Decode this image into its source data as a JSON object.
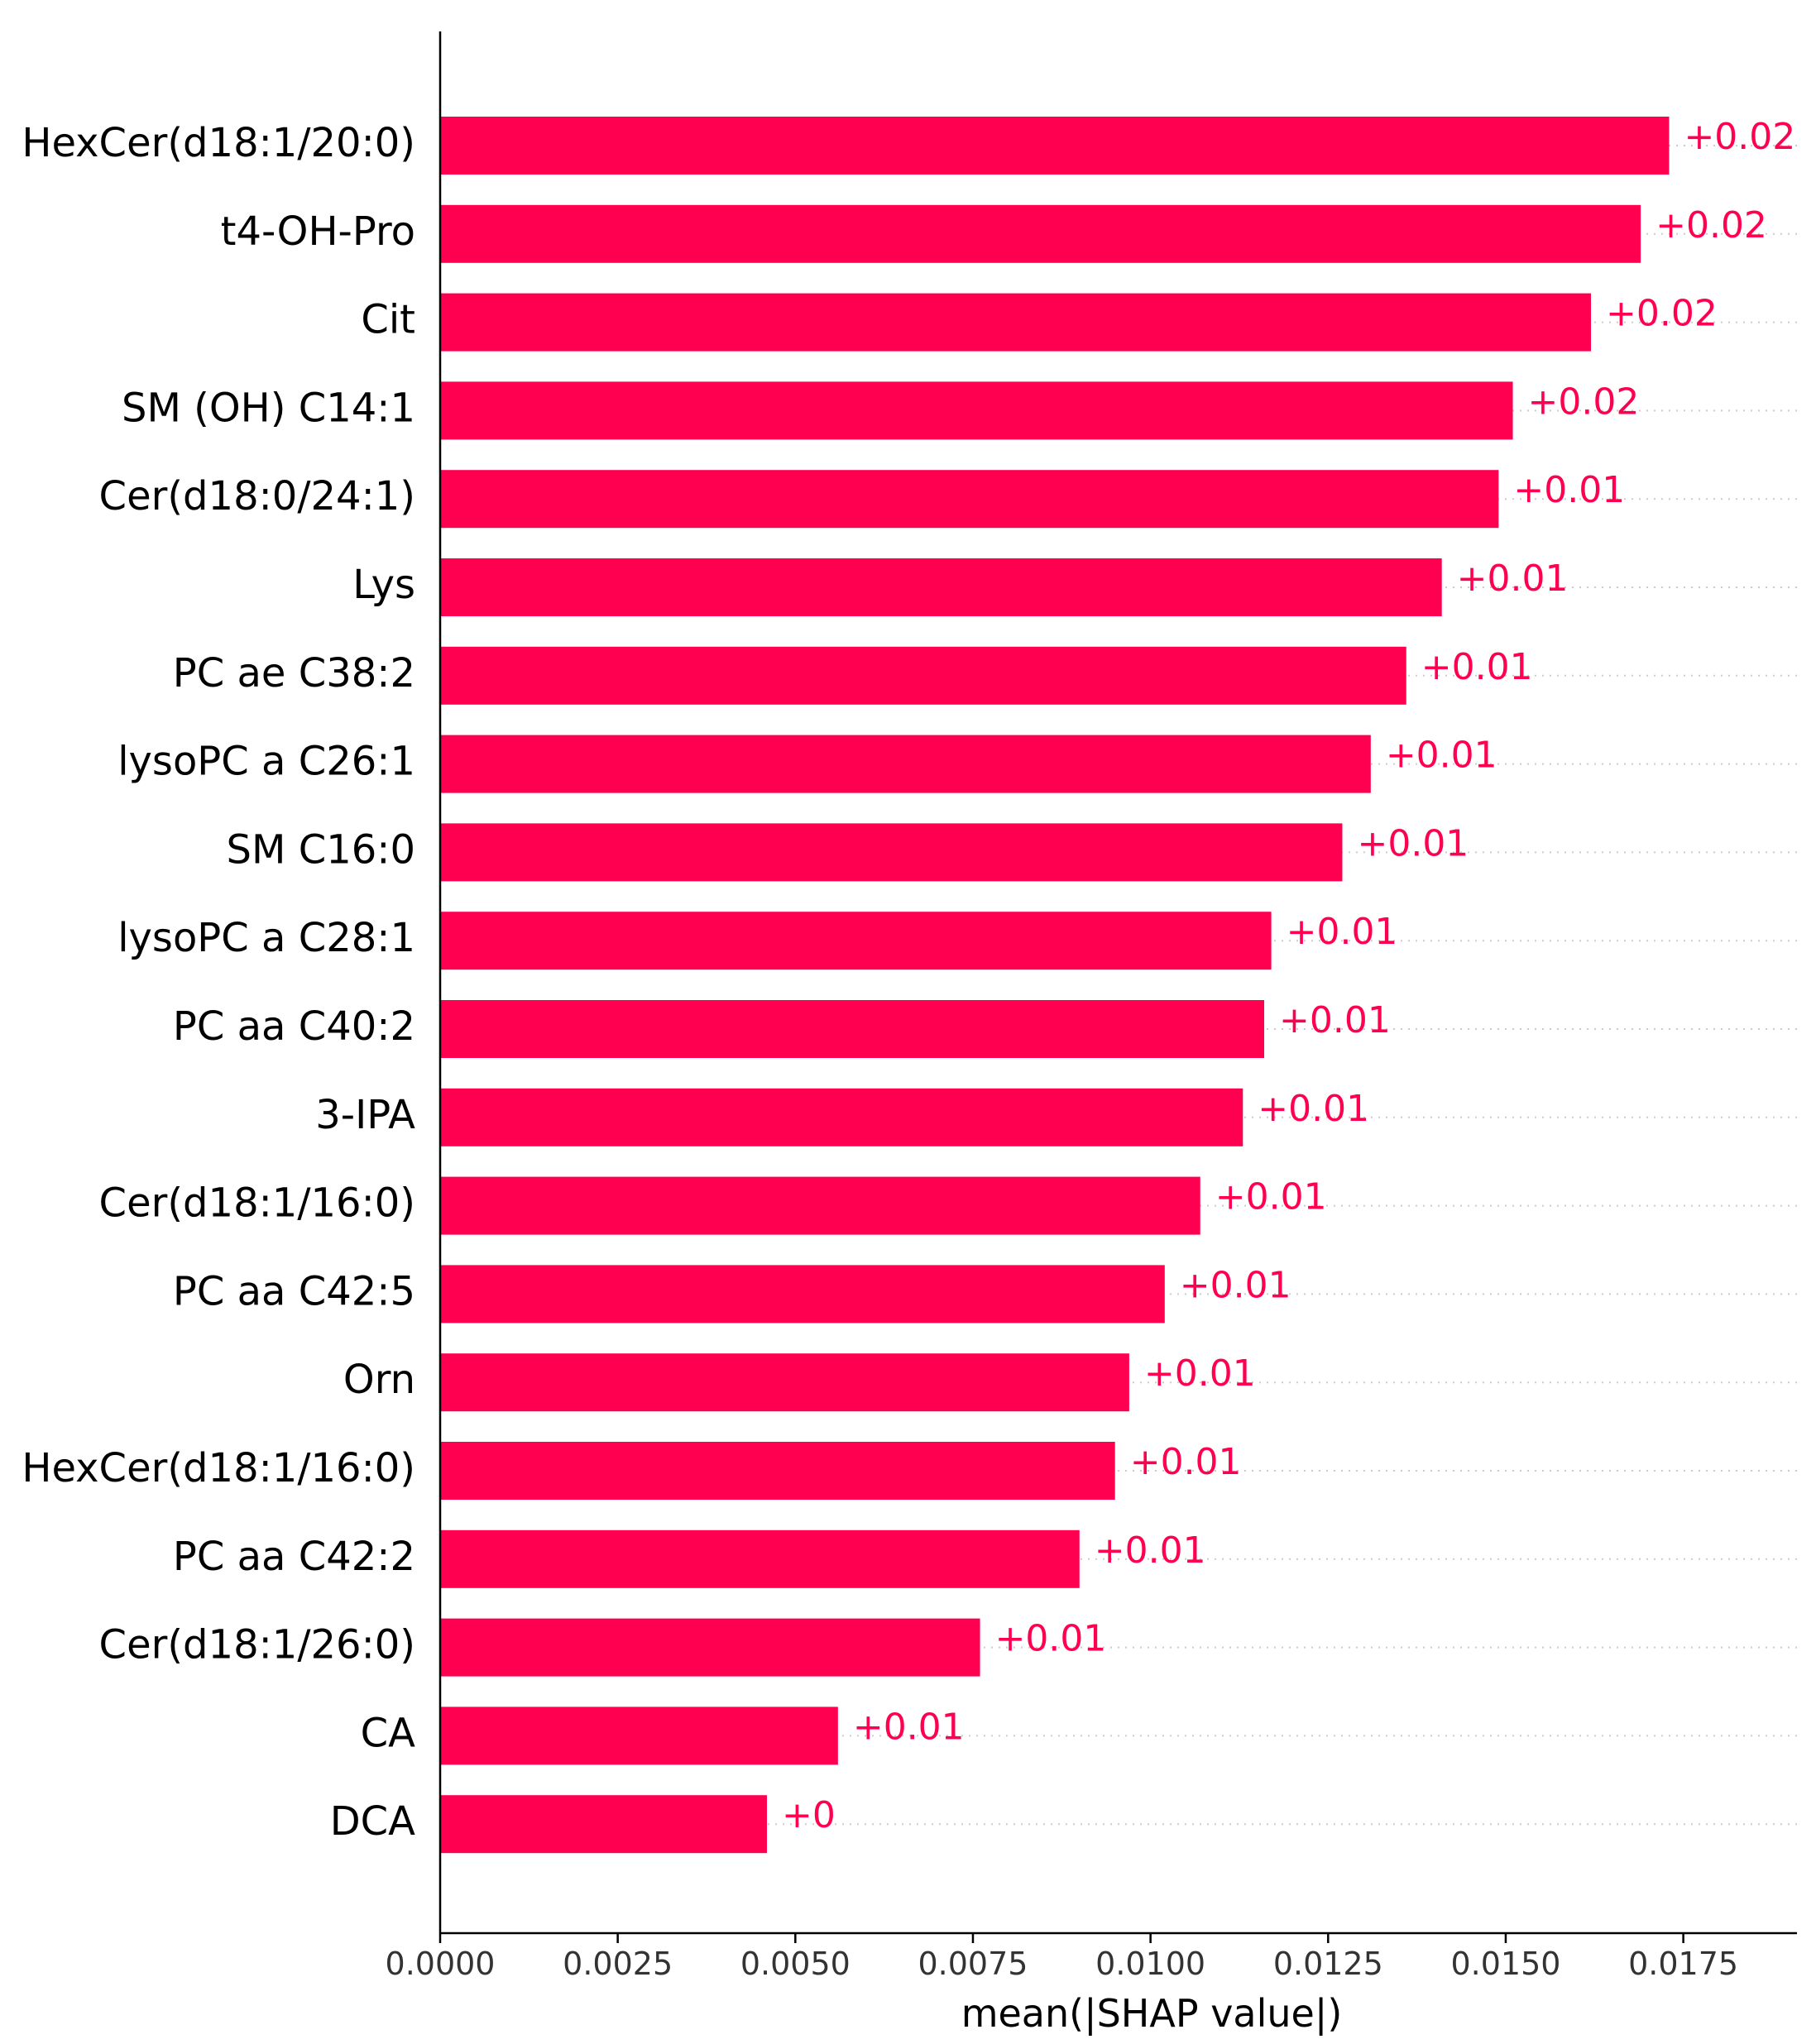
{
  "chart_data": {
    "type": "bar",
    "orientation": "horizontal",
    "categories": [
      "HexCer(d18:1/20:0)",
      "t4-OH-Pro",
      "Cit",
      "SM (OH) C14:1",
      "Cer(d18:0/24:1)",
      "Lys",
      "PC ae C38:2",
      "lysoPC a C26:1",
      "SM C16:0",
      "lysoPC a C28:1",
      "PC aa C40:2",
      "3-IPA",
      "Cer(d18:1/16:0)",
      "PC aa C42:5",
      "Orn",
      "HexCer(d18:1/16:0)",
      "PC aa C42:2",
      "Cer(d18:1/26:0)",
      "CA",
      "DCA"
    ],
    "values": [
      0.0173,
      0.0169,
      0.0162,
      0.0151,
      0.0149,
      0.0141,
      0.0136,
      0.0131,
      0.0127,
      0.0117,
      0.0116,
      0.0113,
      0.0107,
      0.0102,
      0.0097,
      0.0095,
      0.009,
      0.0076,
      0.0056,
      0.0046
    ],
    "value_labels": [
      "+0.02",
      "+0.02",
      "+0.02",
      "+0.02",
      "+0.01",
      "+0.01",
      "+0.01",
      "+0.01",
      "+0.01",
      "+0.01",
      "+0.01",
      "+0.01",
      "+0.01",
      "+0.01",
      "+0.01",
      "+0.01",
      "+0.01",
      "+0.01",
      "+0.01",
      "+0"
    ],
    "xlabel": "mean(|SHAP value|)",
    "xlim": [
      0,
      0.0191
    ],
    "xticks": [
      0.0,
      0.0025,
      0.005,
      0.0075,
      0.01,
      0.0125,
      0.015,
      0.0175
    ],
    "xtick_labels": [
      "0.0000",
      "0.0025",
      "0.0050",
      "0.0075",
      "0.0100",
      "0.0125",
      "0.0150",
      "0.0175"
    ],
    "grid": "dotted horizontal guide lines per bar",
    "bar_color": "#ff0051",
    "label_color": "#ff0051"
  }
}
